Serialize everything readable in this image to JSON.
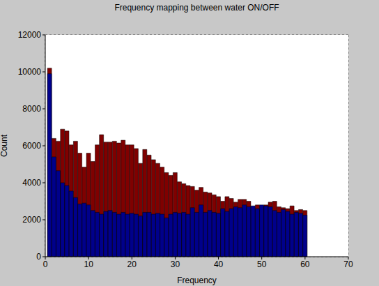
{
  "chart_data": {
    "type": "bar",
    "title": "Frequency mapping between water ON/OFF",
    "x_label": "Frequency",
    "y_label": "Count",
    "bins": [
      0.5,
      1.5,
      2.5,
      3.5,
      4.5,
      5.5,
      6.5,
      7.5,
      8.5,
      9.5,
      10.5,
      11.5,
      12.5,
      13.5,
      14.5,
      15.5,
      16.5,
      17.5,
      18.5,
      19.5,
      20.5,
      21.5,
      22.5,
      23.5,
      24.5,
      25.5,
      26.5,
      27.5,
      28.5,
      29.5,
      30.5,
      31.5,
      32.5,
      33.5,
      34.5,
      35.5,
      36.5,
      37.5,
      38.5,
      39.5,
      40.5,
      41.5,
      42.5,
      43.5,
      44.5,
      45.5,
      46.5,
      47.5,
      48.5,
      49.5,
      50.5,
      51.5,
      52.5,
      53.5,
      54.5,
      55.5,
      56.5,
      57.5,
      58.5,
      59.5,
      60.5
    ],
    "series": [
      {
        "color": "#800000",
        "values": [
          10200,
          6400,
          6250,
          6900,
          6800,
          6050,
          6250,
          5600,
          4850,
          5600,
          5150,
          6050,
          6600,
          6200,
          6200,
          6250,
          6150,
          6300,
          6050,
          6050,
          5850,
          5050,
          5800,
          5500,
          5250,
          5050,
          4850,
          4550,
          4400,
          4550,
          4050,
          3950,
          3850,
          3800,
          3600,
          3750,
          3500,
          3450,
          3350,
          3250,
          3000,
          3250,
          3150,
          2950,
          3100,
          3100,
          3000,
          2700,
          2800,
          2750,
          2800,
          2950,
          3000,
          2700,
          2650,
          2600,
          2750,
          2500,
          2550,
          2500
        ]
      },
      {
        "color": "#00008b",
        "values": [
          9900,
          5400,
          4650,
          4000,
          3850,
          3550,
          3200,
          2850,
          2900,
          2800,
          2500,
          2400,
          2300,
          2450,
          2500,
          2400,
          2300,
          2400,
          2300,
          2350,
          2300,
          2200,
          2400,
          2400,
          2300,
          2350,
          2300,
          2100,
          2300,
          2400,
          2350,
          2400,
          2300,
          2650,
          2400,
          2800,
          2400,
          2500,
          2400,
          2350,
          2600,
          2450,
          2600,
          2700,
          2650,
          2800,
          2700,
          2750,
          2600,
          2800,
          2750,
          2700,
          2500,
          2400,
          2550,
          2450,
          2300,
          2400,
          2350,
          2250
        ]
      }
    ],
    "xlim": [
      0,
      70
    ],
    "xticks": [
      0,
      10,
      20,
      30,
      40,
      50,
      60,
      70
    ],
    "ylim": [
      0,
      12000
    ],
    "yticks": [
      0,
      2000,
      4000,
      6000,
      8000,
      10000,
      12000
    ],
    "grid": true
  }
}
